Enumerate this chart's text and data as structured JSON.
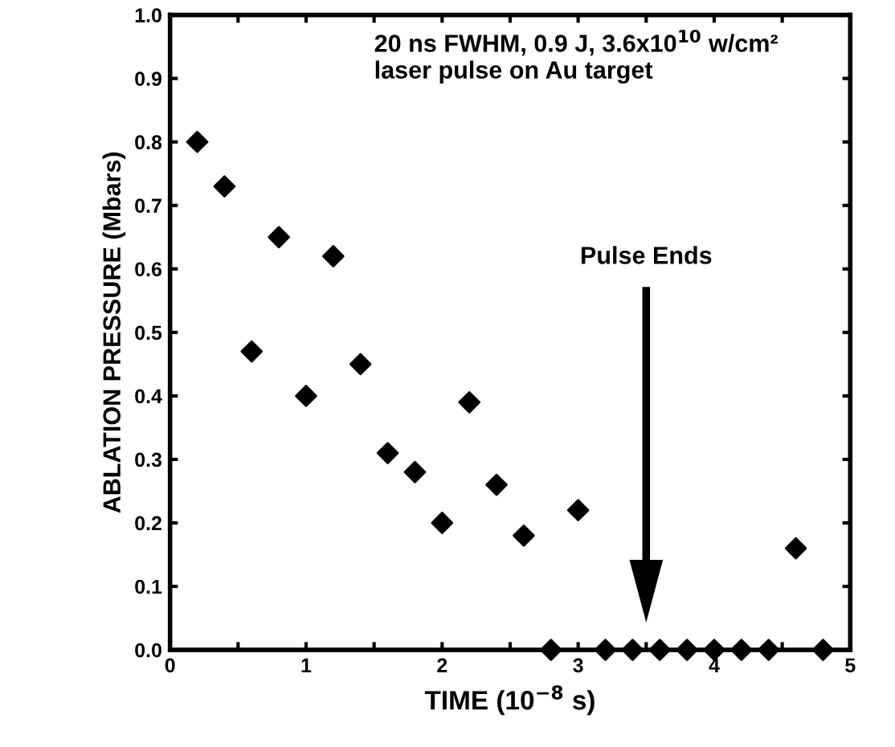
{
  "chart_data": {
    "type": "scatter",
    "xlabel": "TIME (10$^{−8}$ s)",
    "ylabel": "ABLATION PRESSURE (Mbars)",
    "x": [
      0.2,
      0.4,
      0.6,
      0.8,
      1.0,
      1.2,
      1.4,
      1.6,
      1.8,
      2.0,
      2.2,
      2.4,
      2.6,
      2.8,
      3.0,
      3.2,
      3.4,
      3.6,
      3.8,
      4.0,
      4.2,
      4.4,
      4.6,
      4.8
    ],
    "series": [
      {
        "color": "#000000",
        "values": [
          0.8,
          0.73,
          0.47,
          0.65,
          0.4,
          0.62,
          0.45,
          0.31,
          0.28,
          0.2,
          0.39,
          0.26,
          0.18,
          0.0,
          0.22,
          0.0,
          0.0,
          0.0,
          0.0,
          0.0,
          0.0,
          0.0,
          0.16,
          0.0
        ]
      }
    ],
    "marker": "diamond",
    "xlim": [
      0,
      5
    ],
    "ylim": [
      0,
      1
    ],
    "xticks": [
      0,
      {
        "value": 0.5,
        "label": null
      },
      1,
      {
        "value": 1.5,
        "label": null
      },
      2,
      {
        "value": 2.5,
        "label": null
      },
      3,
      {
        "value": 3.5,
        "label": null
      },
      4,
      {
        "value": 4.5,
        "label": null
      },
      5
    ],
    "yticks": [
      {
        "value": 0,
        "label": "0.0"
      },
      {
        "value": 0.1,
        "label": "0.1"
      },
      {
        "value": 0.2,
        "label": "0.2"
      },
      {
        "value": 0.3,
        "label": "0.3"
      },
      {
        "value": 0.4,
        "label": "0.4"
      },
      {
        "value": 0.5,
        "label": "0.5"
      },
      {
        "value": 0.6,
        "label": "0.6"
      },
      {
        "value": 0.7,
        "label": "0.7"
      },
      {
        "value": 0.8,
        "label": "0.8"
      },
      {
        "value": 0.9,
        "label": "0.9"
      },
      {
        "value": 1,
        "label": "1.0"
      }
    ],
    "grid": false,
    "legend": false,
    "annotations": [
      "20 ns FWHM, 0.9 J, 3.6x10$^{10}$ w/cm² laser pulse on Au target",
      "Pulse Ends"
    ]
  }
}
